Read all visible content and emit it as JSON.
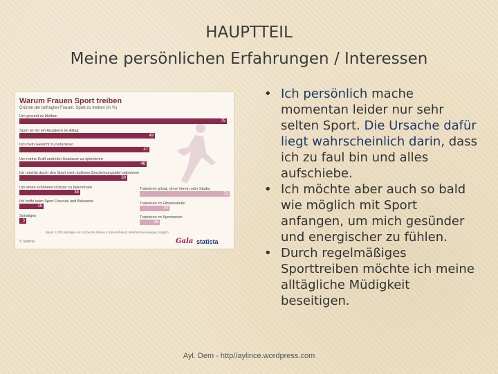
{
  "slide": {
    "title_line1": "HAUPTTEIL",
    "title_line2": "Meine persönlichen Erfahrungen / Interessen",
    "footer": "Ayl. Dem - http//aylince.wordpress.com"
  },
  "infographic": {
    "title": "Warum Frauen Sport treiben",
    "subtitle": "Gründe der befragten Frauen, Sport zu treiben (in %)",
    "logos": [
      "Gala",
      "statista"
    ],
    "note": "Basis: 1.000 Befragte von 16 bis 59 Jahren in Deutschland; Mehrfachnennungen möglich",
    "copyright": "© Statista",
    "bars": [
      {
        "label": "Um gesund zu bleiben",
        "value": 75
      },
      {
        "label": "Sport ist mir ein Ausgleich im Alltag",
        "value": 49
      },
      {
        "label": "Um mein Gewicht zu reduzieren",
        "value": 47
      },
      {
        "label": "Um meine Kraft und/oder Ausdauer zu optimieren",
        "value": 46
      },
      {
        "label": "Ich möchte durch den Sport mein äußeres Erscheinungsbild optimieren",
        "value": 39
      },
      {
        "label": "Um einen schöneren Körper zu bekommen",
        "value": 38
      },
      {
        "label": "Ich treffe beim Sport Freunde und Bekannte",
        "value": 15
      },
      {
        "label": "Sonstiges",
        "value": 3
      }
    ],
    "bars_right": [
      {
        "label": "Trainieren privat, ohne Verein oder Studio",
        "value": 72
      },
      {
        "label": "Trainieren im Fitnessstudio",
        "value": 24
      },
      {
        "label": "Trainieren im Sportverein",
        "value": 16
      }
    ]
  },
  "bullets": [
    {
      "pre_hl": "Ich persönlich",
      "text1": " mache momentan leider nur sehr selten Sport. ",
      "hl2": "Die Ursache dafür liegt wahrscheinlich darin",
      "text2": ", dass ich zu faul bin und alles aufschiebe."
    },
    {
      "text": "Ich möchte aber auch so bald wie möglich mit Sport anfangen, um mich gesünder und energischer zu fühlen."
    },
    {
      "text": "Durch regelmäßiges Sporttreiben möchte ich meine alltägliche Müdigkeit beseitigen."
    }
  ]
}
